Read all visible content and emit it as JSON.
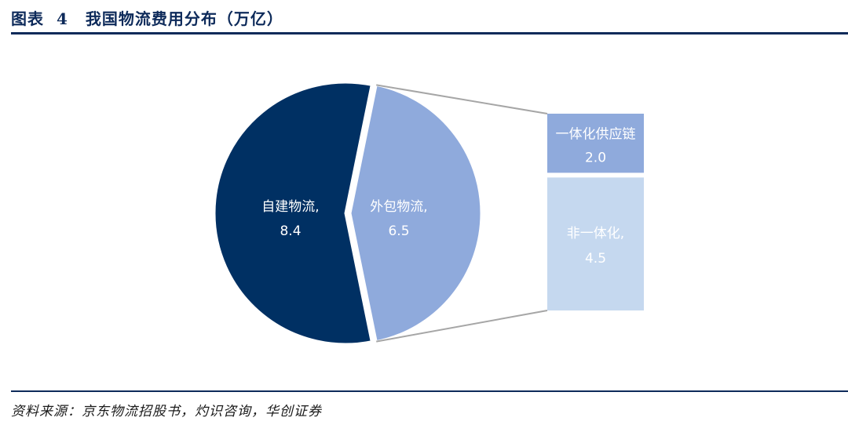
{
  "header": {
    "figure_label": "图表",
    "figure_number": "4",
    "title": "我国物流费用分布（万亿）"
  },
  "chart_data": {
    "type": "pie",
    "title": "我国物流费用分布（万亿）",
    "unit": "万亿",
    "slices": [
      {
        "label": "自建物流,",
        "value": 8.4,
        "display": "8.4",
        "color": "#003063"
      },
      {
        "label": "外包物流,",
        "value": 6.5,
        "display": "6.5",
        "color": "#8faadc"
      }
    ],
    "breakdown": {
      "parent": "外包物流,",
      "segments": [
        {
          "label": "一体化供应链",
          "value": 2.0,
          "display": "2.0",
          "color": "#8faadc"
        },
        {
          "label": "非一体化,",
          "value": 4.5,
          "display": "4.5",
          "color": "#c5d8ef"
        }
      ]
    }
  },
  "footer": {
    "source": "资料来源：京东物流招股书，灼识咨询，华创证券"
  }
}
